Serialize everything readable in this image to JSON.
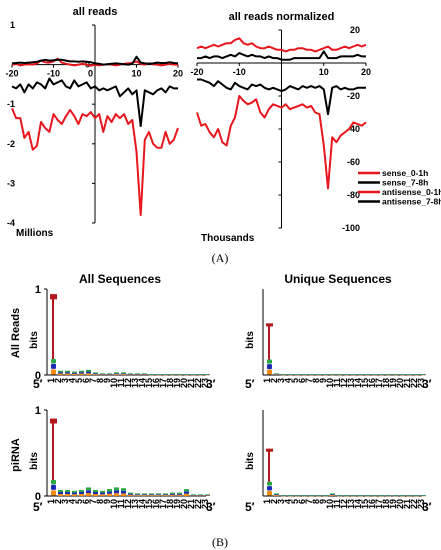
{
  "panel_a_label": "(A)",
  "panel_b_label": "(B)",
  "colors": {
    "red": "#e8161d",
    "black": "#000000",
    "dark_red": "#b3171c",
    "blue": "#1c2cb4",
    "green": "#27a845",
    "orange": "#f08c12"
  },
  "chart_data": [
    {
      "type": "line",
      "title": "all reads",
      "axis_unit": "Millions",
      "xlim": [
        -20,
        20
      ],
      "ylim": [
        -4,
        1
      ],
      "x_ticks": [
        "-20",
        "-10",
        "0",
        "10",
        "20"
      ],
      "y_ticks": [
        "1",
        "0",
        "-1",
        "-2",
        "-3",
        "-4"
      ],
      "x": [
        -20,
        -19,
        -18,
        -17,
        -16,
        -15,
        -14,
        -13,
        -12,
        -11,
        -10,
        -9,
        -8,
        -7,
        -6,
        -5,
        -4,
        -3,
        -2,
        -1,
        0,
        1,
        2,
        3,
        4,
        5,
        6,
        7,
        8,
        9,
        10,
        11,
        12,
        13,
        14,
        15,
        16,
        17,
        18,
        19,
        20
      ],
      "series": [
        {
          "name": "sense_0-1h",
          "color": "#e8161d",
          "values": [
            0.0,
            0.02,
            -0.02,
            0.0,
            0.01,
            0.0,
            0.03,
            0.1,
            0.06,
            0.05,
            0.08,
            0.15,
            0.05,
            0.02,
            0.0,
            -0.02,
            0.0,
            0.02,
            0.0,
            -0.03,
            0.0,
            -0.02,
            0.0,
            0.01,
            0.0,
            -0.02,
            0.0,
            0.02,
            0.03,
            0.04,
            0.08,
            0.02,
            0.0,
            0.03,
            0.01,
            0.0,
            -0.02,
            0.0,
            0.02,
            0.0,
            0.0
          ]
        },
        {
          "name": "sense_7-8h",
          "color": "#000000",
          "values": [
            0.03,
            0.04,
            0.05,
            0.04,
            0.05,
            0.06,
            0.07,
            0.1,
            0.12,
            0.1,
            0.11,
            0.12,
            0.12,
            0.1,
            0.08,
            0.08,
            0.07,
            0.08,
            0.07,
            0.06,
            0.03,
            0.02,
            0.0,
            0.01,
            0.02,
            0.03,
            0.02,
            0.01,
            0.0,
            0.02,
            0.2,
            0.05,
            0.03,
            0.02,
            0.03,
            0.05,
            0.04,
            0.04,
            0.06,
            0.04,
            0.03
          ]
        },
        {
          "name": "antisense_0-1h",
          "color": "#e8161d",
          "values": [
            -1.1,
            -1.35,
            -1.35,
            -1.85,
            -1.7,
            -2.15,
            -2.05,
            -1.45,
            -1.6,
            -1.7,
            -1.25,
            -1.4,
            -1.5,
            -1.3,
            -1.15,
            -1.3,
            -1.5,
            -1.25,
            -1.3,
            -1.2,
            -1.35,
            -1.25,
            -1.7,
            -1.3,
            -1.45,
            -1.25,
            -1.35,
            -1.25,
            -1.5,
            -1.4,
            -2.2,
            -3.8,
            -1.9,
            -1.7,
            -2.0,
            -2.1,
            -2.1,
            -1.7,
            -2.0,
            -1.9,
            -1.6
          ]
        },
        {
          "name": "antisense_7-8h",
          "color": "#000000",
          "values": [
            -0.55,
            -0.6,
            -0.5,
            -0.7,
            -0.5,
            -0.6,
            -0.45,
            -0.5,
            -0.6,
            -0.35,
            -0.5,
            -0.45,
            -0.4,
            -0.55,
            -0.6,
            -0.4,
            -0.55,
            -0.5,
            -0.45,
            -0.6,
            -0.55,
            -0.65,
            -0.6,
            -0.65,
            -0.6,
            -0.55,
            -0.8,
            -0.7,
            -0.6,
            -0.75,
            -0.65,
            -1.55,
            -0.65,
            -0.7,
            -0.75,
            -0.65,
            -0.6,
            -0.7,
            -0.55,
            -0.6,
            -0.6
          ]
        }
      ]
    },
    {
      "type": "line",
      "title": "all reads normalized",
      "axis_unit": "Thousands",
      "xlim": [
        -20,
        20
      ],
      "ylim": [
        -100,
        20
      ],
      "x_ticks": [
        "-20",
        "-10",
        "0",
        "10",
        "20"
      ],
      "y_ticks": [
        "20",
        "0",
        "-20",
        "-40",
        "-60",
        "-80",
        "-100"
      ],
      "legend": {
        "position": "right",
        "entries": [
          "sense_0-1h",
          "sense_7-8h",
          "antisense_0-1h",
          "antisense_7-8h"
        ]
      },
      "x": [
        -20,
        -19,
        -18,
        -17,
        -16,
        -15,
        -14,
        -13,
        -12,
        -11,
        -10,
        -9,
        -8,
        -7,
        -6,
        -5,
        -4,
        -3,
        -2,
        -1,
        0,
        1,
        2,
        3,
        4,
        5,
        6,
        7,
        8,
        9,
        10,
        11,
        12,
        13,
        14,
        15,
        16,
        17,
        18,
        19,
        20
      ],
      "series": [
        {
          "name": "sense_0-1h",
          "color": "#e8161d",
          "values": [
            9,
            10,
            9,
            10,
            11,
            10,
            11,
            12,
            12,
            14,
            15,
            12,
            11,
            12,
            10,
            9,
            9,
            10,
            9,
            8,
            8,
            7,
            8,
            8,
            9,
            9,
            8,
            8,
            7,
            8,
            9,
            10,
            8,
            8,
            9,
            10,
            9,
            10,
            11,
            10,
            11
          ]
        },
        {
          "name": "sense_7-8h",
          "color": "#000000",
          "values": [
            3,
            3,
            4,
            3,
            4,
            4,
            3,
            4,
            5,
            4,
            6,
            5,
            4,
            5,
            4,
            4,
            3,
            4,
            3,
            3,
            2,
            2,
            2,
            3,
            3,
            3,
            3,
            3,
            3,
            3,
            7,
            3,
            3,
            3,
            4,
            4,
            4,
            4,
            5,
            4,
            4
          ]
        },
        {
          "name": "antisense_0-1h",
          "color": "#e8161d",
          "values": [
            -30,
            -38,
            -37,
            -42,
            -45,
            -40,
            -48,
            -50,
            -38,
            -33,
            -20,
            -23,
            -25,
            -24,
            -22,
            -30,
            -33,
            -28,
            -25,
            -26,
            -27,
            -25,
            -28,
            -27,
            -26,
            -25,
            -27,
            -26,
            -30,
            -31,
            -50,
            -76,
            -45,
            -48,
            -44,
            -42,
            -40,
            -36,
            -37,
            -38,
            -36
          ]
        },
        {
          "name": "antisense_7-8h",
          "color": "#000000",
          "values": [
            -10,
            -10,
            -11,
            -12,
            -14,
            -11,
            -13,
            -15,
            -16,
            -12,
            -14,
            -15,
            -16,
            -13,
            -14,
            -13,
            -15,
            -16,
            -15,
            -16,
            -17,
            -16,
            -14,
            -15,
            -16,
            -14,
            -15,
            -14,
            -15,
            -14,
            -16,
            -31,
            -15,
            -14,
            -16,
            -15,
            -16,
            -16,
            -15,
            -15,
            -15
          ]
        }
      ]
    },
    {
      "type": "bar",
      "title": "All Sequences",
      "row_label": "All Reads",
      "ylabel": "bits",
      "ylim": [
        0,
        1
      ],
      "y_ticks": [
        "1",
        "0"
      ],
      "x_ticks": [
        "1",
        "2",
        "3",
        "4",
        "5",
        "6",
        "7",
        "8",
        "9",
        "10",
        "11",
        "12",
        "13",
        "14",
        "15",
        "16",
        "17",
        "18",
        "19",
        "20",
        "21",
        "22",
        "23"
      ],
      "end_labels": [
        "5′",
        "3′"
      ],
      "categories": [
        "1",
        "2",
        "3",
        "4",
        "5",
        "6",
        "7",
        "8",
        "9",
        "10",
        "11",
        "12",
        "13",
        "14",
        "15",
        "16",
        "17",
        "18",
        "19",
        "20",
        "21",
        "22",
        "23"
      ],
      "values": [
        0.94,
        0.05,
        0.05,
        0.04,
        0.05,
        0.06,
        0.03,
        0.02,
        0.02,
        0.03,
        0.03,
        0.02,
        0.02,
        0.02,
        0.01,
        0.01,
        0.01,
        0.01,
        0.01,
        0.01,
        0.01,
        0.01,
        0.01
      ]
    },
    {
      "type": "bar",
      "title": "Unique Sequences",
      "ylabel": "bits",
      "ylim": [
        0,
        1
      ],
      "x_ticks": [
        "1",
        "2",
        "3",
        "4",
        "5",
        "6",
        "7",
        "8",
        "9",
        "10",
        "11",
        "12",
        "13",
        "14",
        "15",
        "16",
        "17",
        "18",
        "19",
        "20",
        "21",
        "22",
        "23"
      ],
      "end_labels": [
        "5′",
        "3′"
      ],
      "categories": [
        "1",
        "2",
        "3",
        "4",
        "5",
        "6",
        "7",
        "8",
        "9",
        "10",
        "11",
        "12",
        "13",
        "14",
        "15",
        "16",
        "17",
        "18",
        "19",
        "20",
        "21",
        "22",
        "23"
      ],
      "values": [
        0.6,
        0.02,
        0.01,
        0.01,
        0.01,
        0.01,
        0.01,
        0.01,
        0.01,
        0.01,
        0.01,
        0.01,
        0.01,
        0.01,
        0.01,
        0.01,
        0.01,
        0.01,
        0.01,
        0.01,
        0.01,
        0.01,
        0.01
      ]
    },
    {
      "type": "bar",
      "row_label": "piRNA",
      "ylabel": "bits",
      "ylim": [
        0,
        1
      ],
      "y_ticks": [
        "1",
        "0"
      ],
      "x_ticks": [
        "1",
        "2",
        "3",
        "4",
        "5",
        "6",
        "7",
        "8",
        "9",
        "10",
        "11",
        "12",
        "13",
        "14",
        "15",
        "16",
        "17",
        "18",
        "19",
        "20",
        "21",
        "22",
        "23"
      ],
      "end_labels": [
        "5′",
        "3′"
      ],
      "categories": [
        "1",
        "2",
        "3",
        "4",
        "5",
        "6",
        "7",
        "8",
        "9",
        "10",
        "11",
        "12",
        "13",
        "14",
        "15",
        "16",
        "17",
        "18",
        "19",
        "20",
        "21",
        "22",
        "23"
      ],
      "values": [
        0.9,
        0.07,
        0.07,
        0.06,
        0.07,
        0.1,
        0.07,
        0.06,
        0.08,
        0.1,
        0.09,
        0.04,
        0.03,
        0.03,
        0.03,
        0.03,
        0.03,
        0.04,
        0.04,
        0.08,
        0.02,
        0.02,
        0.02
      ]
    },
    {
      "type": "bar",
      "ylabel": "bits",
      "ylim": [
        0,
        1
      ],
      "x_ticks": [
        "1",
        "2",
        "3",
        "4",
        "5",
        "6",
        "7",
        "8",
        "9",
        "10",
        "11",
        "12",
        "13",
        "14",
        "15",
        "16",
        "17",
        "18",
        "19",
        "20",
        "21",
        "22",
        "23"
      ],
      "end_labels": [
        "5′",
        "3′"
      ],
      "categories": [
        "1",
        "2",
        "3",
        "4",
        "5",
        "6",
        "7",
        "8",
        "9",
        "10",
        "11",
        "12",
        "13",
        "14",
        "15",
        "16",
        "17",
        "18",
        "19",
        "20",
        "21",
        "22",
        "23"
      ],
      "values": [
        0.55,
        0.03,
        0.01,
        0.01,
        0.01,
        0.01,
        0.01,
        0.01,
        0.01,
        0.03,
        0.01,
        0.01,
        0.01,
        0.01,
        0.01,
        0.01,
        0.01,
        0.01,
        0.01,
        0.01,
        0.01,
        0.01,
        0.01
      ]
    }
  ]
}
